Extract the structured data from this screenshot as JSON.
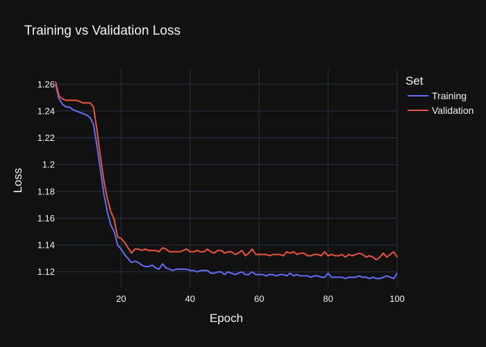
{
  "chart_data": {
    "type": "line",
    "title": "Training vs Validation Loss",
    "xlabel": "Epoch",
    "ylabel": "Loss",
    "xlim": [
      1,
      100
    ],
    "ylim": [
      1.109,
      1.271
    ],
    "xticks": [
      20,
      40,
      60,
      80,
      100
    ],
    "yticks": [
      1.12,
      1.14,
      1.16,
      1.18,
      1.2,
      1.22,
      1.24,
      1.26
    ],
    "ytick_labels": [
      "1.12",
      "1.14",
      "1.16",
      "1.18",
      "1.2",
      "1.22",
      "1.24",
      "1.26"
    ],
    "grid": true,
    "legend": {
      "title": "Set",
      "placement": "right"
    },
    "x": [
      1,
      2,
      3,
      4,
      5,
      6,
      7,
      8,
      9,
      10,
      11,
      12,
      13,
      14,
      15,
      16,
      17,
      18,
      19,
      20,
      21,
      22,
      23,
      24,
      25,
      26,
      27,
      28,
      29,
      30,
      31,
      32,
      33,
      34,
      35,
      36,
      37,
      38,
      39,
      40,
      41,
      42,
      43,
      44,
      45,
      46,
      47,
      48,
      49,
      50,
      51,
      52,
      53,
      54,
      55,
      56,
      57,
      58,
      59,
      60,
      61,
      62,
      63,
      64,
      65,
      66,
      67,
      68,
      69,
      70,
      71,
      72,
      73,
      74,
      75,
      76,
      77,
      78,
      79,
      80,
      81,
      82,
      83,
      84,
      85,
      86,
      87,
      88,
      89,
      90,
      91,
      92,
      93,
      94,
      95,
      96,
      97,
      98,
      99,
      100
    ],
    "series": [
      {
        "name": "Training",
        "color": "#636efa",
        "values": [
          1.26,
          1.249,
          1.245,
          1.243,
          1.243,
          1.241,
          1.24,
          1.239,
          1.238,
          1.237,
          1.235,
          1.23,
          1.214,
          1.196,
          1.178,
          1.165,
          1.155,
          1.15,
          1.14,
          1.137,
          1.133,
          1.13,
          1.127,
          1.128,
          1.127,
          1.125,
          1.124,
          1.124,
          1.125,
          1.123,
          1.122,
          1.126,
          1.123,
          1.122,
          1.121,
          1.122,
          1.122,
          1.122,
          1.122,
          1.121,
          1.121,
          1.12,
          1.121,
          1.121,
          1.121,
          1.119,
          1.119,
          1.12,
          1.12,
          1.118,
          1.12,
          1.119,
          1.118,
          1.119,
          1.12,
          1.118,
          1.118,
          1.12,
          1.118,
          1.118,
          1.118,
          1.117,
          1.118,
          1.118,
          1.117,
          1.118,
          1.118,
          1.117,
          1.119,
          1.117,
          1.118,
          1.117,
          1.117,
          1.117,
          1.116,
          1.117,
          1.117,
          1.116,
          1.116,
          1.119,
          1.116,
          1.116,
          1.116,
          1.116,
          1.115,
          1.116,
          1.116,
          1.116,
          1.117,
          1.116,
          1.116,
          1.115,
          1.116,
          1.115,
          1.115,
          1.116,
          1.117,
          1.116,
          1.115,
          1.119
        ]
      },
      {
        "name": "Validation",
        "color": "#ef553b",
        "values": [
          1.262,
          1.251,
          1.249,
          1.248,
          1.248,
          1.248,
          1.248,
          1.247,
          1.246,
          1.246,
          1.246,
          1.243,
          1.226,
          1.206,
          1.188,
          1.175,
          1.165,
          1.159,
          1.146,
          1.145,
          1.142,
          1.138,
          1.134,
          1.137,
          1.137,
          1.136,
          1.137,
          1.136,
          1.136,
          1.136,
          1.135,
          1.138,
          1.137,
          1.135,
          1.135,
          1.135,
          1.135,
          1.136,
          1.137,
          1.135,
          1.135,
          1.136,
          1.135,
          1.135,
          1.137,
          1.135,
          1.134,
          1.136,
          1.136,
          1.134,
          1.135,
          1.135,
          1.133,
          1.134,
          1.136,
          1.132,
          1.134,
          1.137,
          1.133,
          1.133,
          1.133,
          1.133,
          1.132,
          1.133,
          1.133,
          1.133,
          1.132,
          1.135,
          1.134,
          1.135,
          1.133,
          1.134,
          1.134,
          1.132,
          1.132,
          1.133,
          1.133,
          1.132,
          1.135,
          1.132,
          1.133,
          1.132,
          1.132,
          1.133,
          1.131,
          1.133,
          1.132,
          1.133,
          1.134,
          1.133,
          1.131,
          1.132,
          1.131,
          1.129,
          1.131,
          1.134,
          1.131,
          1.133,
          1.135,
          1.131
        ]
      }
    ]
  }
}
